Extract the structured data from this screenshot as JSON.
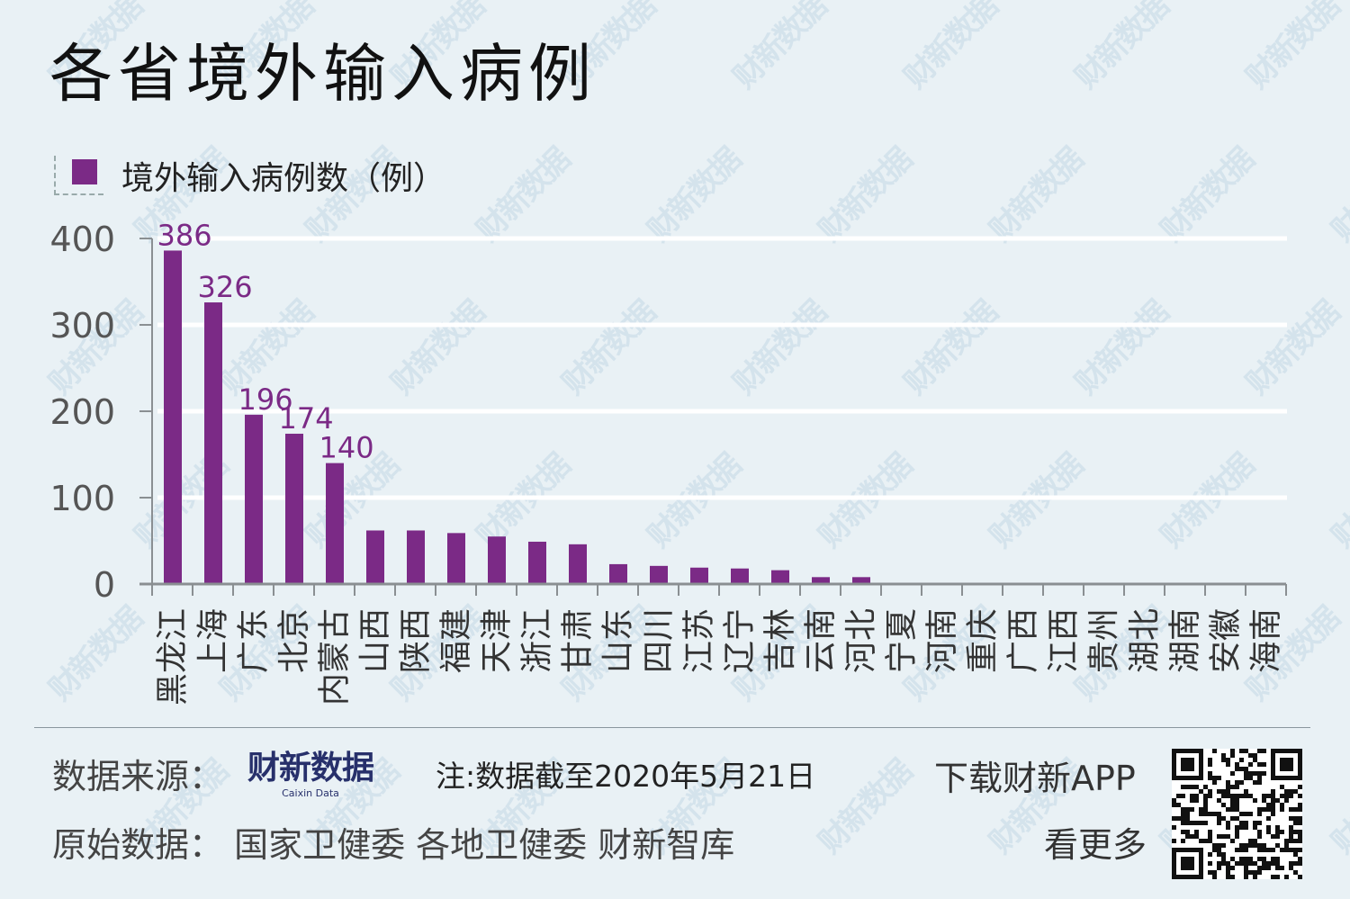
{
  "title": "各省境外输入病例",
  "legend": {
    "label": "境外输入病例数（例）",
    "color": "#7b2a86"
  },
  "watermark_text": "财新数据",
  "colors": {
    "background": "#e9f1f5",
    "bar": "#7b2a86",
    "data_label": "#7b2a86",
    "axis": "#8a8f92",
    "gridline": "#ffffff",
    "brand": "#27306b"
  },
  "chart_data": {
    "type": "bar",
    "title": "各省境外输入病例",
    "xlabel": "",
    "ylabel": "",
    "ylim": [
      0,
      400
    ],
    "yticks": [
      0,
      100,
      200,
      300,
      400
    ],
    "grid": true,
    "legend_position": "top-left",
    "series": [
      {
        "name": "境外输入病例数（例）",
        "values": [
          386,
          326,
          196,
          174,
          140,
          62,
          62,
          59,
          55,
          49,
          46,
          23,
          21,
          19,
          18,
          16,
          8,
          8,
          0,
          0,
          0,
          0,
          0,
          0,
          0,
          0,
          0,
          0
        ]
      }
    ],
    "categories": [
      "黑龙江",
      "上海",
      "广东",
      "北京",
      "内蒙古",
      "山西",
      "陕西",
      "福建",
      "天津",
      "浙江",
      "甘肃",
      "山东",
      "四川",
      "江苏",
      "辽宁",
      "吉林",
      "云南",
      "河北",
      "宁夏",
      "河南",
      "重庆",
      "广西",
      "江西",
      "贵州",
      "湖北",
      "湖南",
      "安徽",
      "海南"
    ],
    "data_labels": [
      {
        "index": 0,
        "text": "386"
      },
      {
        "index": 1,
        "text": "326"
      },
      {
        "index": 2,
        "text": "196"
      },
      {
        "index": 3,
        "text": "174"
      },
      {
        "index": 4,
        "text": "140"
      }
    ]
  },
  "footer": {
    "source_label": "数据来源：",
    "brand_cn": "财新数据",
    "brand_en": "Caixin Data",
    "note": "注:数据截至2020年5月21日",
    "raw_data_label": "原始数据：  国家卫健委  各地卫健委  财新智库",
    "download": "下载财新APP",
    "see_more": "看更多"
  }
}
